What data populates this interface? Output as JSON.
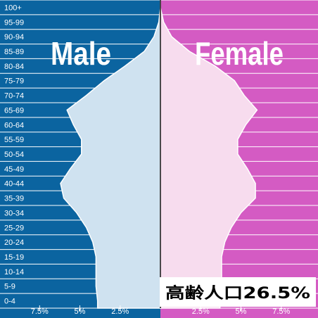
{
  "chart_data": {
    "type": "bar",
    "subtype": "population-pyramid",
    "categories": [
      "0-4",
      "5-9",
      "10-14",
      "15-19",
      "20-24",
      "25-29",
      "30-34",
      "35-39",
      "40-44",
      "45-49",
      "50-54",
      "55-59",
      "60-64",
      "65-69",
      "70-74",
      "75-79",
      "80-84",
      "85-89",
      "90-94",
      "95-99",
      "100+"
    ],
    "series": [
      {
        "name": "Male",
        "values": [
          3.9,
          4.0,
          4.0,
          4.0,
          4.2,
          4.6,
          5.2,
          6.0,
          6.2,
          5.6,
          4.9,
          4.9,
          5.4,
          5.8,
          4.6,
          3.5,
          2.2,
          1.0,
          0.4,
          0.1,
          0.0
        ]
      },
      {
        "name": "Female",
        "values": [
          3.7,
          3.8,
          3.8,
          3.8,
          4.0,
          4.4,
          5.0,
          5.9,
          5.9,
          5.4,
          4.8,
          4.8,
          5.3,
          6.0,
          5.2,
          4.6,
          3.4,
          1.8,
          0.7,
          0.2,
          0.0
        ]
      }
    ],
    "xlim": [
      -8.5,
      8.5
    ],
    "x_ticks": [
      "7.5%",
      "5%",
      "2.5%",
      "2.5%",
      "5%",
      "7.5%"
    ],
    "x_tick_values": [
      -7.5,
      -5,
      -2.5,
      2.5,
      5,
      7.5
    ],
    "annotation": "高齢人口26.5%",
    "colors": {
      "male_bg": "#0b64a0",
      "female_bg": "#d45bc3",
      "male_fill": "#cfe2f0",
      "female_fill": "#f7dcee",
      "grid": "#ffffff"
    }
  }
}
